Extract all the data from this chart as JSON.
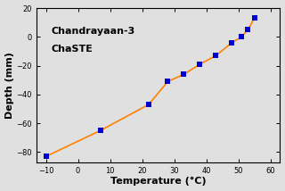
{
  "temperature": [
    -10,
    7,
    22,
    28,
    33,
    38,
    43,
    48,
    51,
    53,
    55
  ],
  "depth": [
    -83,
    -65,
    -47,
    -31,
    -26,
    -19,
    -13,
    -4,
    0,
    5,
    13
  ],
  "line_color": "#FF8000",
  "marker_color": "#0000CC",
  "marker_size": 3,
  "xlabel": "Temperature (°C)",
  "ylabel": "Depth (mm)",
  "xlim": [
    -13,
    63
  ],
  "ylim": [
    -87,
    20
  ],
  "xticks": [
    -10,
    0,
    10,
    20,
    30,
    40,
    50,
    60
  ],
  "yticks": [
    20,
    0,
    -20,
    -40,
    -60,
    -80
  ],
  "annotation_line1": "Chandrayaan-3",
  "annotation_line2": "ChaSTE",
  "bg_color": "#e0e0e0",
  "font_size_label": 8,
  "font_size_annot": 8,
  "font_size_tick": 6
}
